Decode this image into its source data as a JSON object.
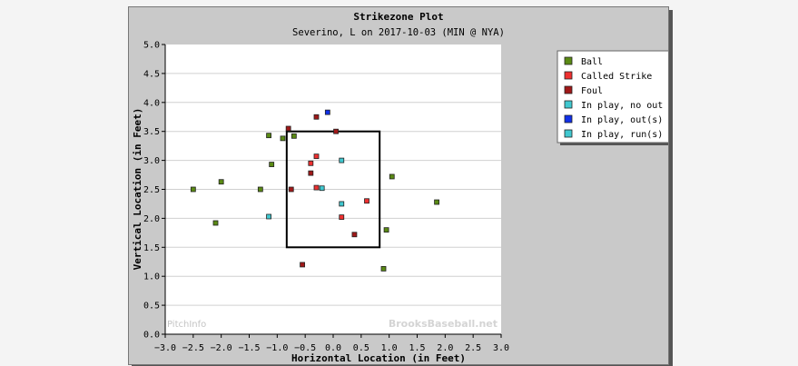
{
  "chart_data": {
    "type": "scatter",
    "title": "Strikezone Plot",
    "subtitle": "Severino, L on 2017-10-03 (MIN @ NYA)",
    "xlabel": "Horizontal Location (in Feet)",
    "ylabel": "Vertical Location (in Feet)",
    "xlim": [
      -3.0,
      3.0
    ],
    "ylim": [
      0.0,
      5.0
    ],
    "x_ticks": [
      "−3.0",
      "−2.5",
      "−2.0",
      "−1.5",
      "−1.0",
      "−0.5",
      "0.0",
      "0.5",
      "1.0",
      "1.5",
      "2.0",
      "2.5",
      "3.0"
    ],
    "y_ticks": [
      "0.0",
      "0.5",
      "1.0",
      "1.5",
      "2.0",
      "2.5",
      "3.0",
      "3.5",
      "4.0",
      "4.5",
      "5.0"
    ],
    "grid": "horizontal",
    "legend_placement": "right",
    "strike_zone": {
      "x": [
        -0.83,
        0.83
      ],
      "y": [
        1.5,
        3.5
      ]
    },
    "watermarks": {
      "left": "PitchInfo",
      "right": "BrooksBaseball.net"
    },
    "series": [
      {
        "name": "Ball",
        "color": "#5a8a14",
        "points": [
          {
            "x": -2.5,
            "y": 2.5
          },
          {
            "x": -2.0,
            "y": 2.63
          },
          {
            "x": -2.1,
            "y": 1.92
          },
          {
            "x": -1.3,
            "y": 2.5
          },
          {
            "x": -1.1,
            "y": 2.93
          },
          {
            "x": -1.15,
            "y": 3.43
          },
          {
            "x": -0.9,
            "y": 3.38
          },
          {
            "x": -0.7,
            "y": 3.42
          },
          {
            "x": 0.9,
            "y": 1.13
          },
          {
            "x": 0.95,
            "y": 1.8
          },
          {
            "x": 1.05,
            "y": 2.72
          },
          {
            "x": 1.85,
            "y": 2.28
          }
        ]
      },
      {
        "name": "Called Strike",
        "color": "#ee3030",
        "points": [
          {
            "x": -0.4,
            "y": 2.95
          },
          {
            "x": -0.3,
            "y": 3.07
          },
          {
            "x": -0.3,
            "y": 2.53
          },
          {
            "x": 0.15,
            "y": 2.02
          },
          {
            "x": 0.6,
            "y": 2.3
          }
        ]
      },
      {
        "name": "Foul",
        "color": "#a01818",
        "points": [
          {
            "x": -0.8,
            "y": 3.55
          },
          {
            "x": -0.3,
            "y": 3.75
          },
          {
            "x": 0.05,
            "y": 3.5
          },
          {
            "x": -0.4,
            "y": 2.78
          },
          {
            "x": -0.75,
            "y": 2.5
          },
          {
            "x": 0.38,
            "y": 1.72
          },
          {
            "x": -0.55,
            "y": 1.2
          }
        ]
      },
      {
        "name": "In play, no out",
        "color": "#40c8d0",
        "points": [
          {
            "x": -1.15,
            "y": 2.03
          },
          {
            "x": -0.2,
            "y": 2.52
          },
          {
            "x": 0.15,
            "y": 3.0
          },
          {
            "x": 0.15,
            "y": 2.25
          }
        ]
      },
      {
        "name": "In play, out(s)",
        "color": "#1030e8",
        "points": [
          {
            "x": -0.1,
            "y": 3.83
          }
        ]
      },
      {
        "name": "In play, run(s)",
        "color": "#40c8d0",
        "points": []
      }
    ]
  }
}
